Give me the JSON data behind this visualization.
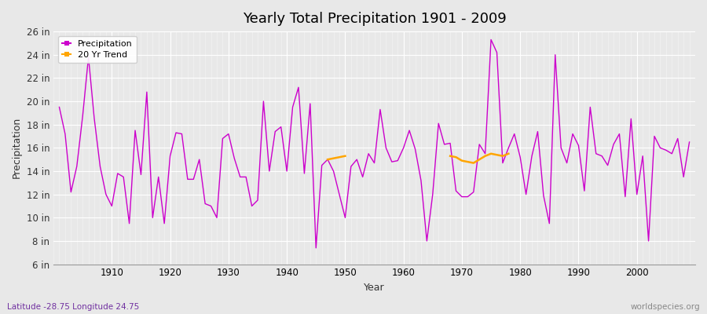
{
  "title": "Yearly Total Precipitation 1901 - 2009",
  "xlabel": "Year",
  "ylabel": "Precipitation",
  "x_label_bottom": "Latitude -28.75 Longitude 24.75",
  "x_label_right": "worldspecies.org",
  "ylim": [
    6,
    26
  ],
  "ytick_labels": [
    "6 in",
    "8 in",
    "10 in",
    "12 in",
    "14 in",
    "16 in",
    "18 in",
    "20 in",
    "22 in",
    "24 in",
    "26 in"
  ],
  "ytick_values": [
    6,
    8,
    10,
    12,
    14,
    16,
    18,
    20,
    22,
    24,
    26
  ],
  "fig_bg_color": "#e8e8e8",
  "plot_bg_color": "#e8e8e8",
  "precip_color": "#cc00cc",
  "trend_color": "#ffa500",
  "years": [
    1901,
    1902,
    1903,
    1904,
    1905,
    1906,
    1907,
    1908,
    1909,
    1910,
    1911,
    1912,
    1913,
    1914,
    1915,
    1916,
    1917,
    1918,
    1919,
    1920,
    1921,
    1922,
    1923,
    1924,
    1925,
    1926,
    1927,
    1928,
    1929,
    1930,
    1931,
    1932,
    1933,
    1934,
    1935,
    1936,
    1937,
    1938,
    1939,
    1940,
    1941,
    1942,
    1943,
    1944,
    1945,
    1946,
    1947,
    1948,
    1949,
    1950,
    1951,
    1952,
    1953,
    1954,
    1955,
    1956,
    1957,
    1958,
    1959,
    1960,
    1961,
    1962,
    1963,
    1964,
    1965,
    1966,
    1967,
    1968,
    1969,
    1970,
    1971,
    1972,
    1973,
    1974,
    1975,
    1976,
    1977,
    1978,
    1979,
    1980,
    1981,
    1982,
    1983,
    1984,
    1985,
    1986,
    1987,
    1988,
    1989,
    1990,
    1991,
    1992,
    1993,
    1994,
    1995,
    1996,
    1997,
    1998,
    1999,
    2000,
    2001,
    2002,
    2003,
    2004,
    2005,
    2006,
    2007,
    2008,
    2009
  ],
  "precip": [
    19.5,
    17.2,
    12.2,
    14.4,
    18.7,
    23.8,
    18.5,
    14.4,
    12.0,
    11.0,
    13.8,
    13.5,
    9.5,
    17.5,
    13.7,
    20.8,
    10.0,
    13.5,
    9.5,
    15.3,
    17.3,
    17.2,
    13.3,
    13.3,
    15.0,
    11.2,
    11.0,
    10.0,
    16.8,
    17.2,
    15.1,
    13.5,
    13.5,
    11.0,
    11.5,
    20.0,
    14.0,
    17.4,
    17.8,
    14.0,
    19.5,
    21.2,
    13.8,
    19.8,
    7.4,
    14.5,
    15.0,
    14.0,
    12.0,
    10.0,
    14.4,
    15.0,
    13.5,
    15.5,
    14.7,
    19.3,
    16.0,
    14.8,
    14.9,
    16.0,
    17.5,
    15.9,
    13.2,
    8.0,
    12.0,
    18.1,
    16.3,
    16.4,
    12.3,
    11.8,
    11.8,
    12.2,
    16.3,
    15.5,
    25.3,
    24.2,
    14.7,
    16.0,
    17.2,
    15.2,
    12.0,
    15.3,
    17.4,
    11.9,
    9.5,
    24.0,
    16.0,
    14.7,
    17.2,
    16.2,
    12.3,
    19.5,
    15.5,
    15.3,
    14.5,
    16.3,
    17.2,
    11.8,
    18.5,
    12.0,
    15.3,
    8.0,
    17.0,
    16.0,
    15.8,
    15.5,
    16.8,
    13.5,
    16.5
  ],
  "trend_seg1_years": [
    1947,
    1948,
    1949,
    1950
  ],
  "trend_seg1_values": [
    15.0,
    15.1,
    15.2,
    15.3
  ],
  "trend_seg2_years": [
    1968,
    1969,
    1970,
    1971,
    1972,
    1973,
    1974,
    1975,
    1976,
    1977,
    1978
  ],
  "trend_seg2_values": [
    15.3,
    15.2,
    14.9,
    14.8,
    14.7,
    15.0,
    15.3,
    15.5,
    15.4,
    15.3,
    15.5
  ],
  "xticks": [
    1910,
    1920,
    1930,
    1940,
    1950,
    1960,
    1970,
    1980,
    1990,
    2000
  ],
  "xlim": [
    1900,
    2010
  ]
}
